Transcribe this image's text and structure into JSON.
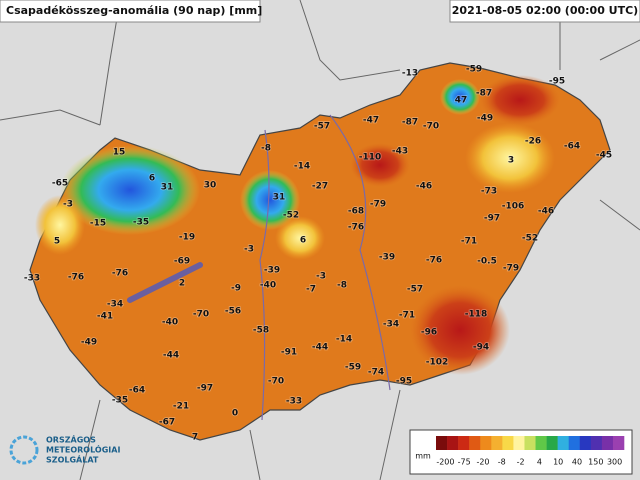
{
  "header": {
    "title": "Csapadékösszeg-anomália (90 nap) [mm]",
    "timestamp": "2021-08-05 02:00 (00:00 UTC)"
  },
  "stations": [
    -13,
    -59,
    -95,
    47,
    -87,
    -57,
    -47,
    -87,
    -70,
    -49,
    -26,
    -64,
    -45,
    15,
    -8,
    -110,
    -43,
    3,
    -65,
    6,
    -14,
    31,
    30,
    -27,
    -46,
    -73,
    -3,
    31,
    -52,
    -106,
    -46,
    -15,
    -35,
    -68,
    -79,
    -97,
    -76,
    5,
    -19,
    6,
    -71,
    -52,
    -3,
    -39,
    -76,
    -0.5,
    -79,
    -33,
    -76,
    -76,
    -69,
    -39,
    -3,
    -40,
    2,
    -9,
    -7,
    -8,
    -57,
    -34,
    -41,
    -70,
    -56,
    -40,
    -71,
    -34,
    -118,
    -96,
    -58,
    -14,
    -49,
    -94,
    -91,
    -44,
    -44,
    -102,
    -59,
    -74,
    -95,
    -70,
    -64,
    -97,
    -35,
    -33,
    -21,
    0,
    -67,
    7
  ],
  "legend": {
    "unit": "mm",
    "labels": [
      -200,
      -75,
      -20,
      -8,
      -2,
      4,
      10,
      40,
      150,
      300
    ]
  },
  "logo": {
    "lines": [
      "ORSZÁGOS",
      "METEOROLÓGIAI",
      "SZOLGÁLAT"
    ]
  }
}
